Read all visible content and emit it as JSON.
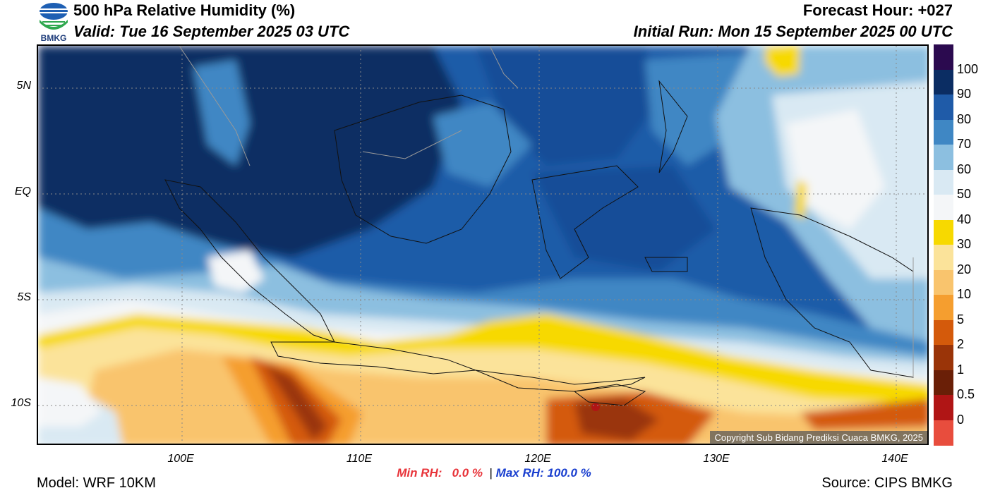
{
  "header": {
    "title": "500 hPa Relative Humidity (%)",
    "valid": "Valid: Tue 16 September 2025 03 UTC",
    "forecast_hour": "Forecast Hour: +027",
    "initial_run": "Initial Run: Mon 15 September 2025 00 UTC",
    "logo_text": "BMKG"
  },
  "map": {
    "lat_labels": [
      "5N",
      "EQ",
      "5S",
      "10S"
    ],
    "lon_labels": [
      "100E",
      "110E",
      "120E",
      "130E",
      "140E"
    ],
    "copyright": "Copyright Sub Bidang Prediksi Cuaca BMKG, 2025"
  },
  "colorbar": {
    "labels": [
      "100",
      "90",
      "80",
      "70",
      "60",
      "50",
      "40",
      "30",
      "20",
      "10",
      "5",
      "2",
      "1",
      "0.5",
      "0"
    ],
    "colors": [
      "#2b0a4f",
      "#0b2d63",
      "#1f5ba8",
      "#3f87c4",
      "#8cbfe0",
      "#d9e9f3",
      "#f4f6f8",
      "#f7d900",
      "#fbe39a",
      "#f9c46d",
      "#f59e2f",
      "#d45a0b",
      "#9a3408",
      "#6a1f07",
      "#b01515",
      "#e84d3d"
    ]
  },
  "footer": {
    "min_rh_label": "Min RH:",
    "min_rh_value": "0.0 %",
    "separator": "|",
    "max_rh_label": "Max RH:",
    "max_rh_value": "100.0 %",
    "model": "Model: WRF 10KM",
    "source": "Source: CIPS BMKG"
  }
}
